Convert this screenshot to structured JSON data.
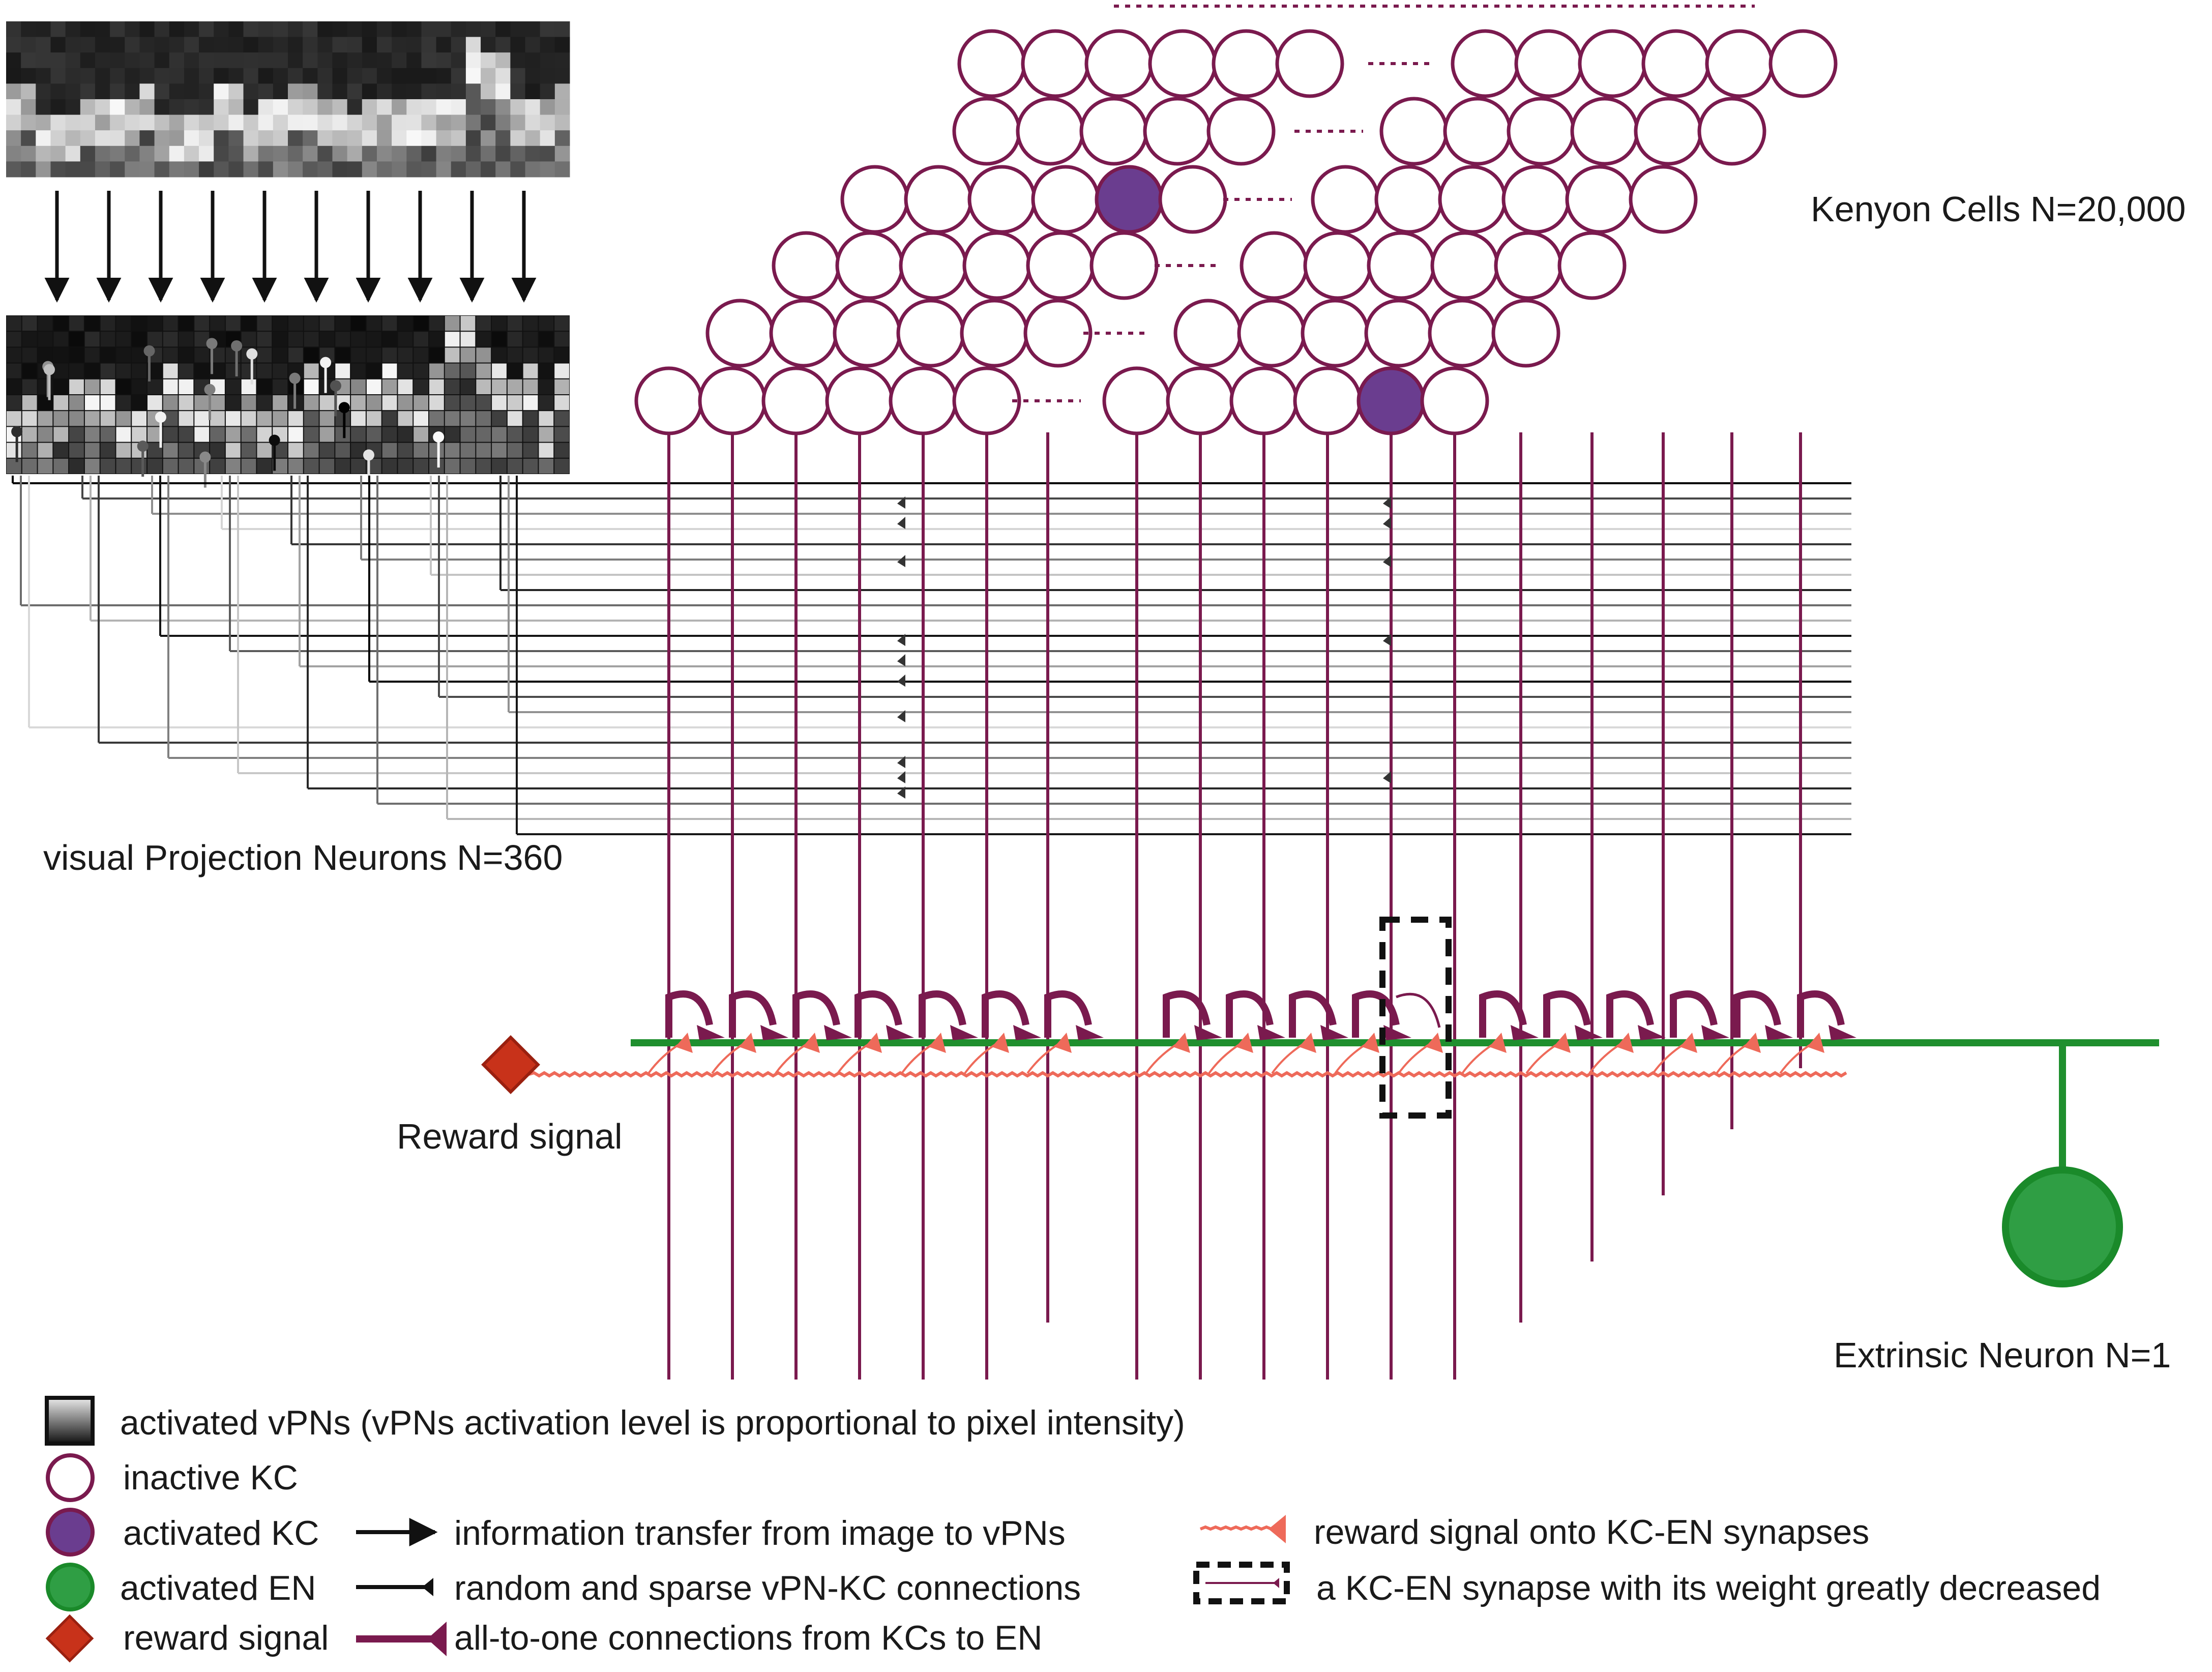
{
  "labels": {
    "kenyon_cells": "Kenyon Cells N=20,000",
    "vpn": "visual Projection Neurons N=360",
    "reward": "Reward signal",
    "extrinsic": "Extrinsic Neuron N=1"
  },
  "legend": {
    "activated_vpns": "activated vPNs (vPNs activation level is proportional to pixel intensity)",
    "inactive_kc": "inactive KC",
    "activated_kc": "activated KC",
    "activated_en": "activated EN",
    "reward_signal": "reward signal",
    "info_transfer": "information transfer from image to vPNs",
    "random_sparse": "random and sparse vPN-KC connections",
    "all_to_one": "all-to-one connections from KCs to EN",
    "reward_onto": "reward signal onto KC-EN synapses",
    "weight_decreased": "a KC-EN synapse with its weight greatly decreased"
  },
  "colors": {
    "kc_stroke": "#7a1a4e",
    "kc_active": "#6a3d8f",
    "en_green": "#1f8f2e",
    "en_fill": "#2f9e44",
    "reward_red": "#c8321a",
    "reward_line": "#ee6a5a",
    "dark": "#111111"
  }
}
